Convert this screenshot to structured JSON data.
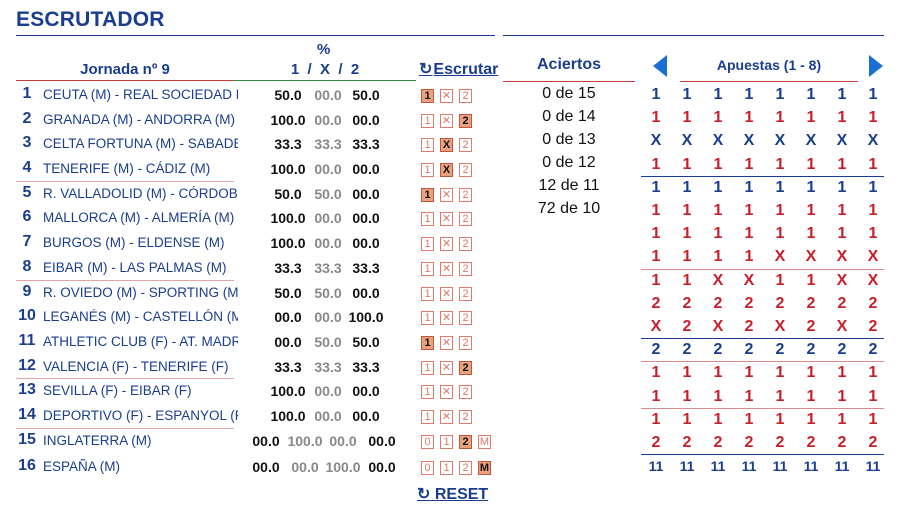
{
  "title": "ESCRUTADOR",
  "header": {
    "jornada": "Jornada nº 9",
    "pct_symbol": "%",
    "pct_cols": "1  /  X  /  2",
    "escrutar": "Escrutar",
    "aciertos": "Aciertos",
    "apuestas": "Apuestas (1 - 8)",
    "reset": "RESET"
  },
  "colors": {
    "accent": "#1a3d8f",
    "red": "#c8202a",
    "box": "#e07a6a",
    "selected": "#e9a27e"
  },
  "icons": {
    "refresh": "refresh-icon",
    "prev": "arrow-left-icon",
    "next": "arrow-right-icon"
  },
  "matches": [
    {
      "num": "1",
      "name": "CEUTA (M) - REAL SOCIEDAD B",
      "p1": "50.0",
      "px": "00.0",
      "p2": "50.0",
      "sel": "1"
    },
    {
      "num": "2",
      "name": "GRANADA (M) - ANDORRA (M)",
      "p1": "100.0",
      "px": "00.0",
      "p2": "00.0",
      "sel": "2"
    },
    {
      "num": "3",
      "name": "CELTA FORTUNA (M) - SABADELL",
      "p1": "33.3",
      "px": "33.3",
      "p2": "33.3",
      "sel": "X"
    },
    {
      "num": "4",
      "name": "TENERIFE (M) - CÁDIZ (M)",
      "p1": "100.0",
      "px": "00.0",
      "p2": "00.0",
      "sel": "X"
    },
    {
      "num": "5",
      "name": "R. VALLADOLID (M) - CÓRDOBA",
      "p1": "50.0",
      "px": "50.0",
      "p2": "00.0",
      "sel": "1"
    },
    {
      "num": "6",
      "name": "MALLORCA (M) - ALMERÍA (M)",
      "p1": "100.0",
      "px": "00.0",
      "p2": "00.0",
      "sel": ""
    },
    {
      "num": "7",
      "name": "BURGOS (M) - ELDENSE (M)",
      "p1": "100.0",
      "px": "00.0",
      "p2": "00.0",
      "sel": ""
    },
    {
      "num": "8",
      "name": "EIBAR (M) - LAS PALMAS (M)",
      "p1": "33.3",
      "px": "33.3",
      "p2": "33.3",
      "sel": ""
    },
    {
      "num": "9",
      "name": "R. OVIEDO (M) - SPORTING (M)",
      "p1": "50.0",
      "px": "50.0",
      "p2": "00.0",
      "sel": ""
    },
    {
      "num": "10",
      "name": "LEGANÉS (M) - CASTELLÓN (M)",
      "p1": "00.0",
      "px": "00.0",
      "p2": "100.0",
      "sel": ""
    },
    {
      "num": "11",
      "name": "ATHLETIC CLUB (F) - AT. MADRID",
      "p1": "00.0",
      "px": "50.0",
      "p2": "50.0",
      "sel": "1"
    },
    {
      "num": "12",
      "name": "VALENCIA (F) - TENERIFE (F)",
      "p1": "33.3",
      "px": "33.3",
      "p2": "33.3",
      "sel": "2"
    },
    {
      "num": "13",
      "name": "SEVILLA (F) - EIBAR (F)",
      "p1": "100.0",
      "px": "00.0",
      "p2": "00.0",
      "sel": ""
    },
    {
      "num": "14",
      "name": "DEPORTIVO (F) - ESPANYOL (F)",
      "p1": "100.0",
      "px": "00.0",
      "p2": "00.0",
      "sel": ""
    }
  ],
  "goals": [
    {
      "num": "15",
      "name": "INGLATERRA (M)",
      "p0": "00.0",
      "p1": "100.0",
      "p2": "00.0",
      "pm": "00.0",
      "sel": "2"
    },
    {
      "num": "16",
      "name": "ESPAÑA (M)",
      "p0": "00.0",
      "p1": "00.0",
      "p2": "100.0",
      "pm": "00.0",
      "sel": "M"
    }
  ],
  "aciertos": [
    "0 de 15",
    "0 de 14",
    "0 de 13",
    "0 de 12",
    "12 de 11",
    "72 de 10"
  ],
  "bets": [
    {
      "color": "blue",
      "vals": [
        "1",
        "1",
        "1",
        "1",
        "1",
        "1",
        "1",
        "1"
      ]
    },
    {
      "color": "red",
      "vals": [
        "1",
        "1",
        "1",
        "1",
        "1",
        "1",
        "1",
        "1"
      ]
    },
    {
      "color": "blue",
      "vals": [
        "X",
        "X",
        "X",
        "X",
        "X",
        "X",
        "X",
        "X"
      ]
    },
    {
      "color": "red",
      "vals": [
        "1",
        "1",
        "1",
        "1",
        "1",
        "1",
        "1",
        "1"
      ]
    },
    {
      "color": "blue",
      "vals": [
        "1",
        "1",
        "1",
        "1",
        "1",
        "1",
        "1",
        "1"
      ]
    },
    {
      "color": "red",
      "vals": [
        "1",
        "1",
        "1",
        "1",
        "1",
        "1",
        "1",
        "1"
      ]
    },
    {
      "color": "red",
      "vals": [
        "1",
        "1",
        "1",
        "1",
        "1",
        "1",
        "1",
        "1"
      ]
    },
    {
      "color": "red",
      "vals": [
        "1",
        "1",
        "1",
        "1",
        "X",
        "X",
        "X",
        "X"
      ]
    },
    {
      "color": "red",
      "vals": [
        "1",
        "1",
        "X",
        "X",
        "1",
        "1",
        "X",
        "X"
      ]
    },
    {
      "color": "red",
      "vals": [
        "2",
        "2",
        "2",
        "2",
        "2",
        "2",
        "2",
        "2"
      ]
    },
    {
      "color": "red",
      "vals": [
        "X",
        "2",
        "X",
        "2",
        "X",
        "2",
        "X",
        "2"
      ]
    },
    {
      "color": "blue",
      "vals": [
        "2",
        "2",
        "2",
        "2",
        "2",
        "2",
        "2",
        "2"
      ]
    },
    {
      "color": "red",
      "vals": [
        "1",
        "1",
        "1",
        "1",
        "1",
        "1",
        "1",
        "1"
      ]
    },
    {
      "color": "red",
      "vals": [
        "1",
        "1",
        "1",
        "1",
        "1",
        "1",
        "1",
        "1"
      ]
    },
    {
      "color": "red",
      "vals": [
        "1",
        "1",
        "1",
        "1",
        "1",
        "1",
        "1",
        "1"
      ]
    },
    {
      "color": "red",
      "vals": [
        "2",
        "2",
        "2",
        "2",
        "2",
        "2",
        "2",
        "2"
      ]
    }
  ],
  "totals": [
    "11",
    "11",
    "11",
    "11",
    "11",
    "11",
    "11",
    "11"
  ]
}
